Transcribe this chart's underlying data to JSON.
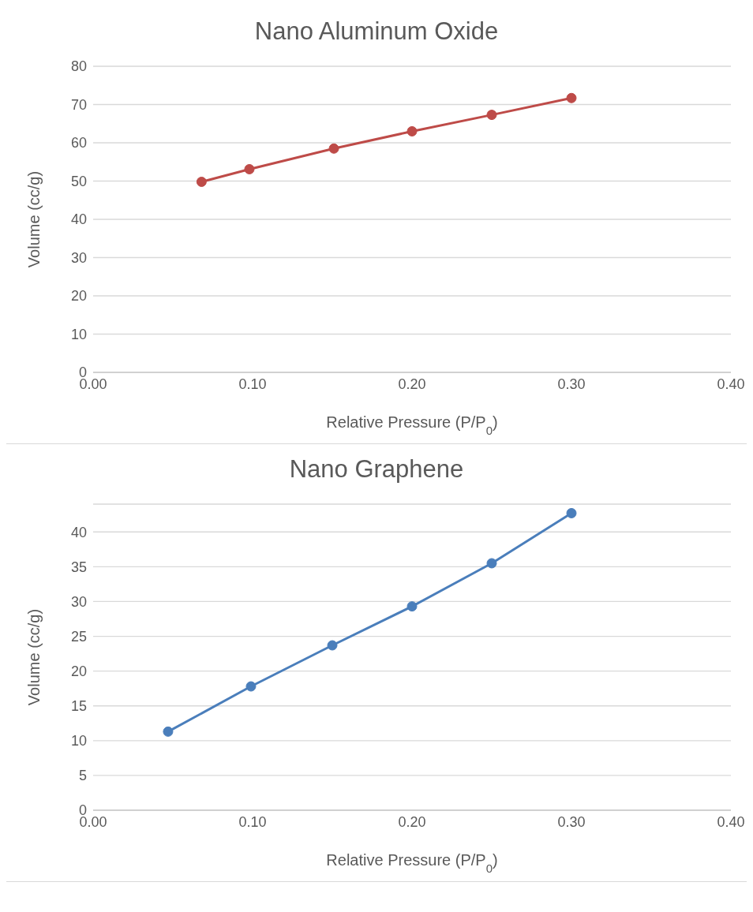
{
  "chart_data": [
    {
      "type": "line",
      "title": "Nano Aluminum Oxide",
      "xlabel": "Relative Pressure (P/P$_{0}$)",
      "ylabel": "Volume (cc/g)",
      "series": [
        {
          "color": "#be4b48",
          "x": [
            0.068,
            0.098,
            0.151,
            0.2,
            0.25,
            0.3
          ],
          "values": [
            49.8,
            53.1,
            58.5,
            63.0,
            67.3,
            71.7
          ]
        }
      ],
      "xlim": [
        0,
        0.4
      ],
      "xticks": [
        {
          "value": 0,
          "label": "0.00"
        },
        {
          "value": 0.1,
          "label": "0.10"
        },
        {
          "value": 0.2,
          "label": "0.20"
        },
        {
          "value": 0.3,
          "label": "0.30"
        },
        {
          "value": 0.4,
          "label": "0.40"
        }
      ],
      "ylim": [
        0,
        80
      ],
      "yticks": [
        0,
        10,
        20,
        30,
        40,
        50,
        60,
        70,
        80
      ],
      "grid": "y",
      "marker": "circle",
      "line_style": "solid"
    },
    {
      "type": "line",
      "title": "Nano Graphene",
      "xlabel": "Relative Pressure (P/P$_{0}$)",
      "ylabel": "Volume (cc/g)",
      "series": [
        {
          "color": "#4a7ebb",
          "x": [
            0.047,
            0.099,
            0.15,
            0.2,
            0.25,
            0.3
          ],
          "values": [
            11.3,
            17.8,
            23.7,
            29.3,
            35.5,
            42.7
          ]
        }
      ],
      "xlim": [
        0,
        0.4
      ],
      "xticks": [
        {
          "value": 0,
          "label": "0.00"
        },
        {
          "value": 0.1,
          "label": "0.10"
        },
        {
          "value": 0.2,
          "label": "0.20"
        },
        {
          "value": 0.3,
          "label": "0.30"
        },
        {
          "value": 0.4,
          "label": "0.40"
        }
      ],
      "ylim": [
        0,
        44
      ],
      "yticks": [
        0,
        5,
        10,
        15,
        20,
        25,
        30,
        35,
        40
      ],
      "grid": "y",
      "marker": "circle",
      "line_style": "solid"
    }
  ]
}
